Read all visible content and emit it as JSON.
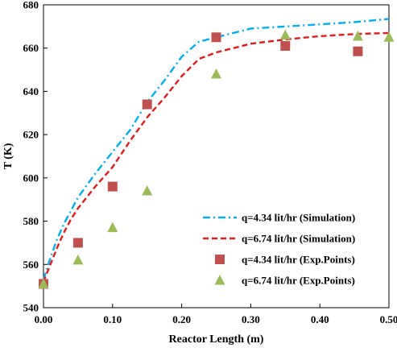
{
  "chart_data": {
    "type": "line",
    "xlabel": "Reactor Length (m)",
    "ylabel": "T (K)",
    "xlim": [
      0,
      0.5
    ],
    "ylim": [
      540,
      680
    ],
    "x_ticks": [
      "0.00",
      "0.10",
      "0.20",
      "0.30",
      "0.40",
      "0.50"
    ],
    "y_ticks": [
      "540",
      "560",
      "580",
      "600",
      "620",
      "640",
      "660",
      "680"
    ],
    "grid": false,
    "legend_position": "bottom-right",
    "series": [
      {
        "name": "q=4.34 lit/hr (Simulation)",
        "kind": "line",
        "style": "dash-dot",
        "color": "#00B0F0",
        "x": [
          0.0,
          0.01,
          0.02,
          0.03,
          0.04,
          0.05,
          0.075,
          0.1,
          0.125,
          0.15,
          0.175,
          0.2,
          0.225,
          0.25,
          0.3,
          0.35,
          0.4,
          0.45,
          0.5
        ],
        "y": [
          553,
          563,
          572,
          579,
          585,
          591,
          602,
          612,
          622,
          635,
          645,
          656,
          663,
          665,
          669,
          670,
          671,
          672,
          673.5
        ]
      },
      {
        "name": "q=6.74 lit/hr (Simulation)",
        "kind": "line",
        "style": "dash",
        "color": "#E31A1C",
        "x": [
          0.0,
          0.01,
          0.02,
          0.03,
          0.04,
          0.05,
          0.075,
          0.1,
          0.125,
          0.15,
          0.175,
          0.2,
          0.225,
          0.25,
          0.3,
          0.35,
          0.4,
          0.45,
          0.5
        ],
        "y": [
          552,
          560,
          568,
          575,
          581,
          586,
          596,
          605,
          617,
          628,
          637,
          647,
          655,
          658,
          662,
          664,
          665.5,
          666.5,
          667
        ]
      },
      {
        "name": "q=4.34 lit/hr (Exp.Points)",
        "kind": "scatter",
        "marker": "square",
        "color": "#C0504D",
        "x": [
          0.0,
          0.05,
          0.1,
          0.15,
          0.25,
          0.35,
          0.455
        ],
        "y": [
          551,
          570,
          596,
          634,
          665,
          661,
          658.5
        ]
      },
      {
        "name": "q=6.74 lit/hr (Exp.Points)",
        "kind": "scatter",
        "marker": "triangle",
        "color": "#9BBB59",
        "x": [
          0.0,
          0.05,
          0.1,
          0.15,
          0.25,
          0.35,
          0.455,
          0.5
        ],
        "y": [
          551,
          562,
          577,
          594,
          648,
          666,
          665.5,
          665
        ]
      }
    ]
  }
}
